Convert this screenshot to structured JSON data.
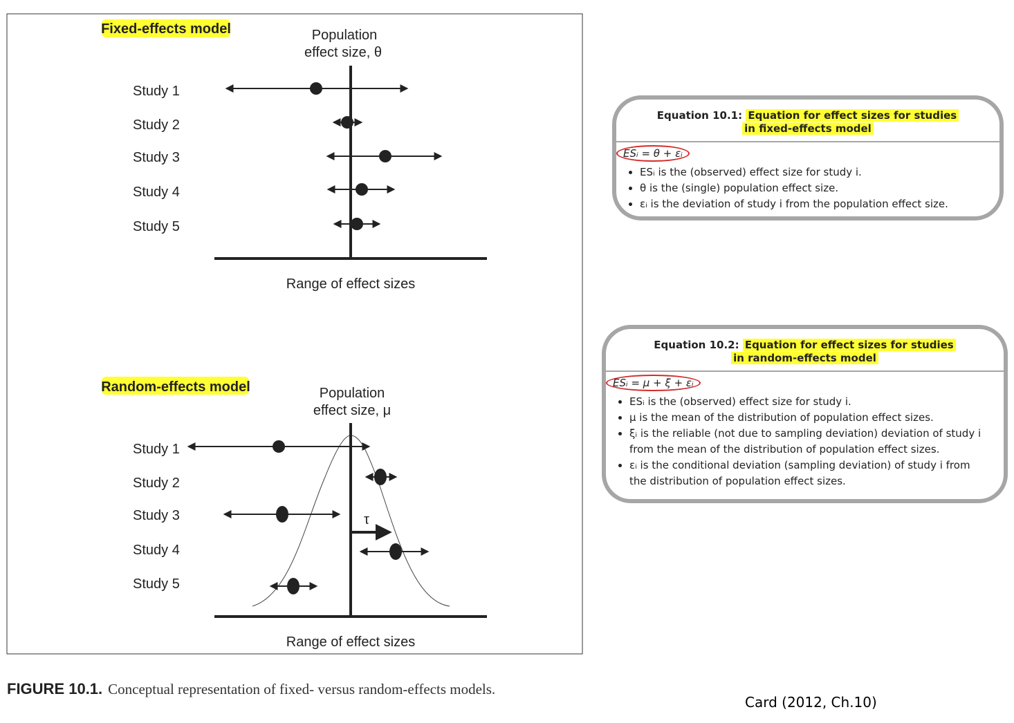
{
  "figure": {
    "fixed": {
      "label": "Fixed-effects model",
      "population_label": [
        "Population",
        "effect size, θ"
      ],
      "studies": [
        "Study 1",
        "Study 2",
        "Study 3",
        "Study 4",
        "Study 5"
      ],
      "axis_label": "Range of effect sizes"
    },
    "random": {
      "label": "Random-effects model",
      "population_label": [
        "Population",
        "effect size, μ"
      ],
      "tau": "τ",
      "studies": [
        "Study 1",
        "Study 2",
        "Study 3",
        "Study 4",
        "Study 5"
      ],
      "axis_label": "Range of effect sizes"
    },
    "caption": {
      "number": "FIGURE 10.1.",
      "text": "Conceptual representation of fixed- versus random-effects models."
    }
  },
  "equations": [
    {
      "prefix": "Equation 10.1:",
      "title": [
        "Equation for effect sizes for studies",
        "in fixed-effects model"
      ],
      "formula": "ESᵢ = θ + εᵢ",
      "bullets": [
        "ESᵢ is the (observed) effect size for study i.",
        "θ is the (single) population effect size.",
        "εᵢ is the deviation of study i from the population effect size."
      ]
    },
    {
      "prefix": "Equation 10.2:",
      "title": [
        "Equation for effect sizes for studies",
        "in random-effects model"
      ],
      "formula": "ESᵢ = μ + ξ + εᵢ",
      "bullets": [
        "ESᵢ is the (observed) effect size for study i.",
        "μ is the mean of the distribution of population effect sizes.",
        "ξᵢ is the reliable (not due to sampling deviation) deviation of study i from the mean of the distribution of population effect sizes.",
        "εᵢ is the conditional deviation (sampling deviation) of study i from the distribution of population effect sizes."
      ]
    }
  ],
  "citation": "Card (2012, Ch.10)"
}
